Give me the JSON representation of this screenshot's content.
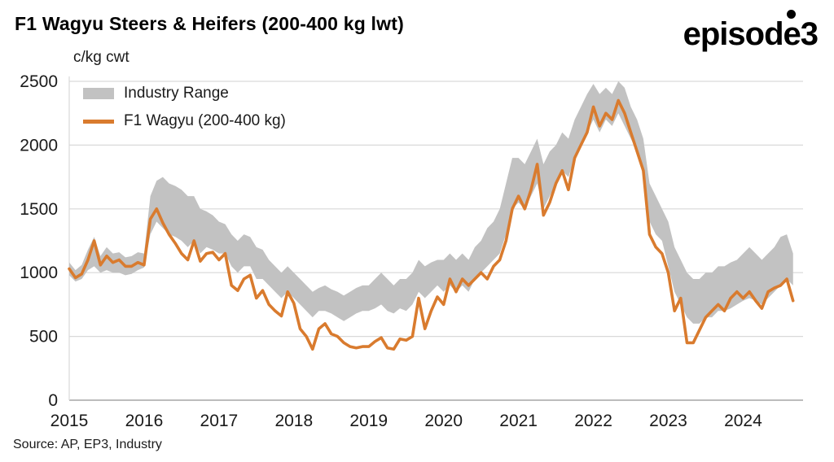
{
  "header": {
    "title": "F1 Wagyu Steers & Heifers (200-400 kg lwt)",
    "logo_text": "episode3"
  },
  "footer": {
    "source": "Source: AP, EP3, Industry"
  },
  "chart_data": {
    "type": "line",
    "title": "F1 Wagyu Steers & Heifers (200-400 kg lwt)",
    "unit_label": "c/kg cwt",
    "xlabel": "",
    "ylabel": "c/kg cwt",
    "ylim": [
      0,
      2500
    ],
    "xlim": [
      2015,
      2024.8
    ],
    "yticks": [
      0,
      500,
      1000,
      1500,
      2000,
      2500
    ],
    "xticks": [
      2015,
      2016,
      2017,
      2018,
      2019,
      2020,
      2021,
      2022,
      2023,
      2024
    ],
    "grid": "horizontal",
    "legend_position": "top-left-inside",
    "colors": {
      "line": "#d97b2e",
      "band": "#c2c2c2",
      "gridline": "#d9d9d9",
      "axis": "#a6a6a6",
      "text": "#1a1a1a"
    },
    "legend": [
      {
        "label": "Industry Range",
        "color": "#c2c2c2",
        "kind": "band"
      },
      {
        "label": "F1 Wagyu (200-400 kg)",
        "color": "#d97b2e",
        "kind": "line"
      }
    ],
    "x_start": 2015,
    "frequency": "monthly",
    "series": [
      {
        "name": "F1 Wagyu (200-400 kg)",
        "values": [
          1030,
          960,
          990,
          1100,
          1250,
          1060,
          1130,
          1080,
          1100,
          1050,
          1050,
          1080,
          1060,
          1420,
          1500,
          1390,
          1300,
          1230,
          1150,
          1100,
          1250,
          1090,
          1150,
          1160,
          1100,
          1150,
          900,
          860,
          950,
          980,
          800,
          860,
          750,
          700,
          660,
          850,
          760,
          560,
          500,
          400,
          560,
          600,
          520,
          500,
          450,
          420,
          410,
          420,
          420,
          460,
          490,
          410,
          400,
          480,
          470,
          500,
          800,
          560,
          700,
          810,
          750,
          950,
          850,
          950,
          900,
          950,
          1000,
          950,
          1050,
          1100,
          1250,
          1500,
          1600,
          1500,
          1650,
          1850,
          1450,
          1550,
          1700,
          1800,
          1650,
          1900,
          2000,
          2100,
          2300,
          2150,
          2250,
          2200,
          2350,
          2250,
          2100,
          1950,
          1800,
          1300,
          1200,
          1150,
          1000,
          700,
          800,
          450,
          450,
          550,
          650,
          700,
          750,
          700,
          800,
          850,
          800,
          850,
          780,
          720,
          850,
          880,
          900,
          950,
          780
        ]
      }
    ],
    "band": {
      "name": "Industry Range",
      "low": [
        980,
        930,
        950,
        1020,
        1050,
        1000,
        1020,
        1000,
        1000,
        980,
        990,
        1020,
        1040,
        1300,
        1400,
        1350,
        1300,
        1280,
        1250,
        1200,
        1250,
        1150,
        1200,
        1180,
        1150,
        1150,
        1050,
        1000,
        1050,
        1050,
        950,
        950,
        900,
        850,
        800,
        850,
        800,
        750,
        700,
        650,
        700,
        700,
        680,
        650,
        620,
        650,
        680,
        700,
        700,
        720,
        750,
        700,
        680,
        720,
        700,
        750,
        850,
        800,
        850,
        900,
        850,
        900,
        850,
        900,
        850,
        950,
        1000,
        1050,
        1100,
        1150,
        1300,
        1500,
        1550,
        1500,
        1600,
        1700,
        1500,
        1600,
        1700,
        1800,
        1750,
        1900,
        2000,
        2100,
        2200,
        2100,
        2200,
        2150,
        2250,
        2150,
        2050,
        1950,
        1800,
        1400,
        1300,
        1250,
        1050,
        850,
        750,
        650,
        600,
        600,
        650,
        650,
        700,
        700,
        720,
        750,
        780,
        800,
        780,
        750,
        800,
        850,
        900,
        950,
        900
      ],
      "high": [
        1080,
        1020,
        1060,
        1180,
        1280,
        1130,
        1200,
        1150,
        1160,
        1120,
        1130,
        1160,
        1150,
        1600,
        1720,
        1750,
        1700,
        1680,
        1650,
        1600,
        1600,
        1500,
        1480,
        1450,
        1400,
        1380,
        1300,
        1250,
        1300,
        1280,
        1200,
        1180,
        1100,
        1050,
        1000,
        1050,
        1000,
        950,
        900,
        850,
        880,
        900,
        870,
        850,
        820,
        850,
        880,
        900,
        900,
        950,
        1000,
        950,
        900,
        950,
        950,
        1000,
        1100,
        1050,
        1080,
        1100,
        1100,
        1150,
        1100,
        1150,
        1100,
        1200,
        1250,
        1350,
        1400,
        1500,
        1700,
        1900,
        1900,
        1850,
        1950,
        2050,
        1850,
        1950,
        2000,
        2100,
        2050,
        2200,
        2300,
        2400,
        2480,
        2400,
        2450,
        2400,
        2500,
        2450,
        2300,
        2200,
        2050,
        1700,
        1600,
        1500,
        1400,
        1200,
        1100,
        1000,
        950,
        950,
        1000,
        1000,
        1050,
        1050,
        1080,
        1100,
        1150,
        1200,
        1150,
        1100,
        1150,
        1200,
        1280,
        1300,
        1150
      ]
    }
  }
}
